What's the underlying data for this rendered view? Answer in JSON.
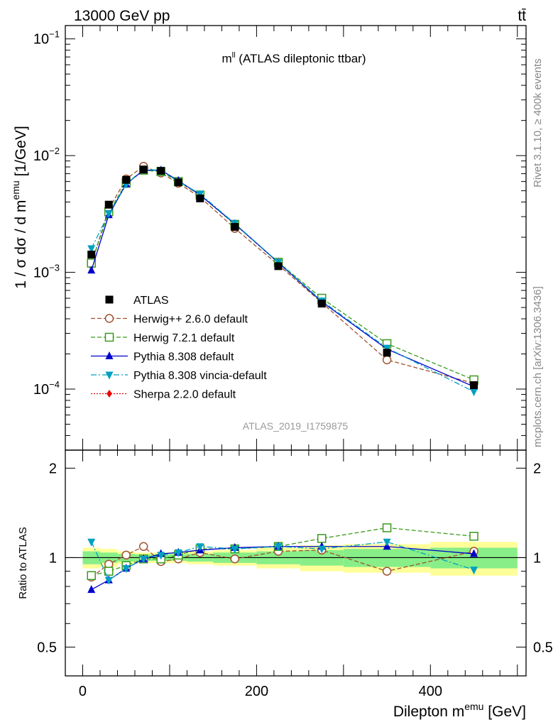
{
  "header": {
    "energy_label": "13000 GeV pp",
    "process_label": "tt̄"
  },
  "side_labels": {
    "rivet": "Rivet 3.1.10, ≥ 400k events",
    "mcplots": "mcplots.cern.ch [arXiv:1306.3436]"
  },
  "chart_data": [
    {
      "type": "scatter",
      "panel": "main",
      "title_base": "m",
      "title_sup": "ll",
      "title_rest": " (ATLAS dileptonic ttbar)",
      "watermark": "ATLAS_2019_I1759875",
      "ylabel_base": "1 / σ  dσ / d m",
      "ylabel_sup": "emu",
      "ylabel_unit": " [1/GeV]",
      "yscale": "log",
      "ylim": [
        3e-05,
        0.13
      ],
      "xlim": [
        -20,
        510
      ],
      "ytick_labels": [
        {
          "base": "10",
          "exp": "−4",
          "value": 0.0001
        },
        {
          "base": "10",
          "exp": "−3",
          "value": 0.001
        },
        {
          "base": "10",
          "exp": "−2",
          "value": 0.01
        },
        {
          "base": "10",
          "exp": "−1",
          "value": 0.1
        }
      ],
      "legend_position": "lower-left",
      "x": [
        10,
        30,
        50,
        70,
        90,
        110,
        135,
        175,
        225,
        275,
        350,
        450
      ],
      "series": [
        {
          "name": "ATLAS",
          "color": "#000000",
          "marker": "square",
          "dash": "none",
          "values": [
            0.00142,
            0.0038,
            0.0062,
            0.0076,
            0.0074,
            0.0059,
            0.0043,
            0.00245,
            0.00113,
            0.00054,
            0.000205,
            0.000108
          ]
        },
        {
          "name": "Herwig++ 2.6.0 default",
          "color": "#a0522d",
          "marker": "circle-open",
          "dash": "6,3",
          "values": [
            0.00118,
            0.0035,
            0.0063,
            0.0081,
            0.0071,
            0.0058,
            0.0044,
            0.00238,
            0.00116,
            0.00055,
            0.000178,
            0.000112
          ]
        },
        {
          "name": "Herwig 7.2.1 default",
          "color": "#3a9a1a",
          "marker": "square-open",
          "dash": "6,3",
          "values": [
            0.0012,
            0.0033,
            0.0058,
            0.0075,
            0.0073,
            0.006,
            0.0046,
            0.00258,
            0.00122,
            0.0006,
            0.000245,
            0.00012
          ]
        },
        {
          "name": "Pythia 8.308 default",
          "color": "#0000cc",
          "marker": "triangle-up",
          "dash": "none",
          "values": [
            0.00104,
            0.0031,
            0.0057,
            0.0075,
            0.0075,
            0.0061,
            0.0046,
            0.0026,
            0.00121,
            0.00056,
            0.00022,
            0.000105
          ]
        },
        {
          "name": "Pythia 8.308 vincia-default",
          "color": "#00a0c0",
          "marker": "triangle-down",
          "dash": "8,3,2,3",
          "values": [
            0.0016,
            0.0032,
            0.0057,
            0.0076,
            0.0075,
            0.006,
            0.0047,
            0.00262,
            0.00122,
            0.00057,
            0.000225,
            9.5e-05
          ]
        },
        {
          "name": "Sherpa 2.2.0 default",
          "color": "#ee0000",
          "marker": "diamond",
          "dash": "2,2",
          "values": []
        }
      ]
    },
    {
      "type": "scatter",
      "panel": "ratio",
      "ylabel": "Ratio to ATLAS",
      "xlabel_base": "Dilepton m",
      "xlabel_sup": "emu",
      "xlabel_unit": " [GeV]",
      "ylim": [
        0.4,
        2.3
      ],
      "xlim": [
        -20,
        510
      ],
      "ytick_labels": [
        "0.5",
        "1",
        "2"
      ],
      "xtick_labels": [
        "0",
        "200",
        "400"
      ],
      "bins": [
        [
          0,
          20
        ],
        [
          20,
          40
        ],
        [
          40,
          60
        ],
        [
          60,
          80
        ],
        [
          80,
          100
        ],
        [
          100,
          120
        ],
        [
          120,
          150
        ],
        [
          150,
          200
        ],
        [
          200,
          250
        ],
        [
          250,
          300
        ],
        [
          300,
          400
        ],
        [
          400,
          500
        ]
      ],
      "band_green": [
        0.05,
        0.04,
        0.03,
        0.025,
        0.025,
        0.025,
        0.03,
        0.04,
        0.05,
        0.06,
        0.07,
        0.08
      ],
      "band_yellow": [
        0.08,
        0.07,
        0.05,
        0.04,
        0.04,
        0.04,
        0.05,
        0.06,
        0.08,
        0.1,
        0.11,
        0.13
      ],
      "x": [
        10,
        30,
        50,
        70,
        90,
        110,
        135,
        175,
        225,
        275,
        350,
        450
      ],
      "series": [
        {
          "name": "Herwig++ 2.6.0 default",
          "color": "#a0522d",
          "marker": "circle-open",
          "dash": "6,3",
          "values": [
            0.86,
            0.95,
            1.02,
            1.09,
            0.97,
            0.99,
            1.04,
            0.99,
            1.05,
            1.06,
            0.9,
            1.05
          ]
        },
        {
          "name": "Herwig 7.2.1 default",
          "color": "#3a9a1a",
          "marker": "square-open",
          "dash": "6,3",
          "values": [
            0.87,
            0.9,
            0.94,
            0.99,
            0.99,
            1.02,
            1.07,
            1.07,
            1.09,
            1.16,
            1.26,
            1.18
          ]
        },
        {
          "name": "Pythia 8.308 default",
          "color": "#0000cc",
          "marker": "triangle-up",
          "dash": "none",
          "values": [
            0.78,
            0.84,
            0.92,
            0.99,
            1.03,
            1.04,
            1.06,
            1.08,
            1.09,
            1.09,
            1.09,
            1.03
          ]
        },
        {
          "name": "Pythia 8.308 vincia-default",
          "color": "#00a0c0",
          "marker": "triangle-down",
          "dash": "8,3,2,3",
          "values": [
            1.13,
            0.84,
            0.92,
            0.99,
            1.02,
            1.04,
            1.09,
            1.07,
            1.09,
            1.07,
            1.13,
            0.91
          ]
        }
      ]
    }
  ]
}
